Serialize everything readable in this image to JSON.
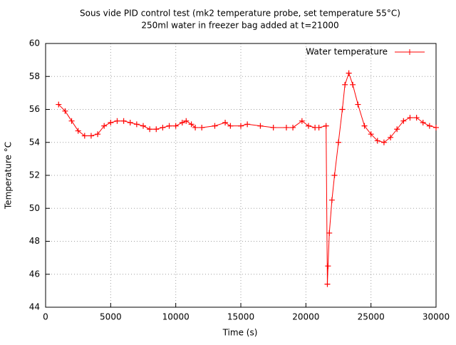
{
  "chart_data": {
    "type": "line",
    "title": "Sous vide PID control test (mk2 temperature probe, set temperature 55°C)",
    "subtitle": "250ml water in freezer bag added at t=21000",
    "x_label": "Time (s)",
    "y_label": "Temperature °C",
    "x": [
      1000,
      1500,
      2000,
      2500,
      3000,
      3500,
      4000,
      4500,
      5000,
      5500,
      6000,
      6500,
      7000,
      7500,
      8000,
      8500,
      9000,
      9500,
      10000,
      10500,
      10800,
      11200,
      11500,
      12000,
      13000,
      13800,
      14200,
      15000,
      15500,
      16500,
      17500,
      18500,
      19000,
      19700,
      20200,
      20700,
      21000,
      21550,
      21650,
      21700,
      21800,
      22000,
      22200,
      22500,
      22800,
      23000,
      23300,
      23600,
      24000,
      24500,
      25000,
      25500,
      26000,
      26500,
      27000,
      27500,
      28000,
      28500,
      29000,
      29500,
      30000
    ],
    "series": [
      {
        "name": "Water temperature",
        "color": "#ff0000",
        "values": [
          56.3,
          55.9,
          55.3,
          54.7,
          54.4,
          54.4,
          54.5,
          55.0,
          55.2,
          55.3,
          55.3,
          55.2,
          55.1,
          55.0,
          54.8,
          54.8,
          54.9,
          55.0,
          55.0,
          55.2,
          55.3,
          55.1,
          54.9,
          54.9,
          55.0,
          55.2,
          55.0,
          55.0,
          55.1,
          55.0,
          54.9,
          54.9,
          54.9,
          55.3,
          55.0,
          54.9,
          54.9,
          55.0,
          45.4,
          46.5,
          48.5,
          50.5,
          52.0,
          54.0,
          56.0,
          57.5,
          58.2,
          57.5,
          56.3,
          55.0,
          54.5,
          54.1,
          54.0,
          54.3,
          54.8,
          55.3,
          55.5,
          55.5,
          55.2,
          55.0,
          54.9
        ]
      }
    ],
    "xlim": [
      0,
      30000
    ],
    "xticks": [
      0,
      5000,
      10000,
      15000,
      20000,
      25000,
      30000
    ],
    "ylim": [
      44,
      60
    ],
    "yticks": [
      44,
      46,
      48,
      50,
      52,
      54,
      56,
      58,
      60
    ],
    "grid": true,
    "legend": "top-right"
  }
}
